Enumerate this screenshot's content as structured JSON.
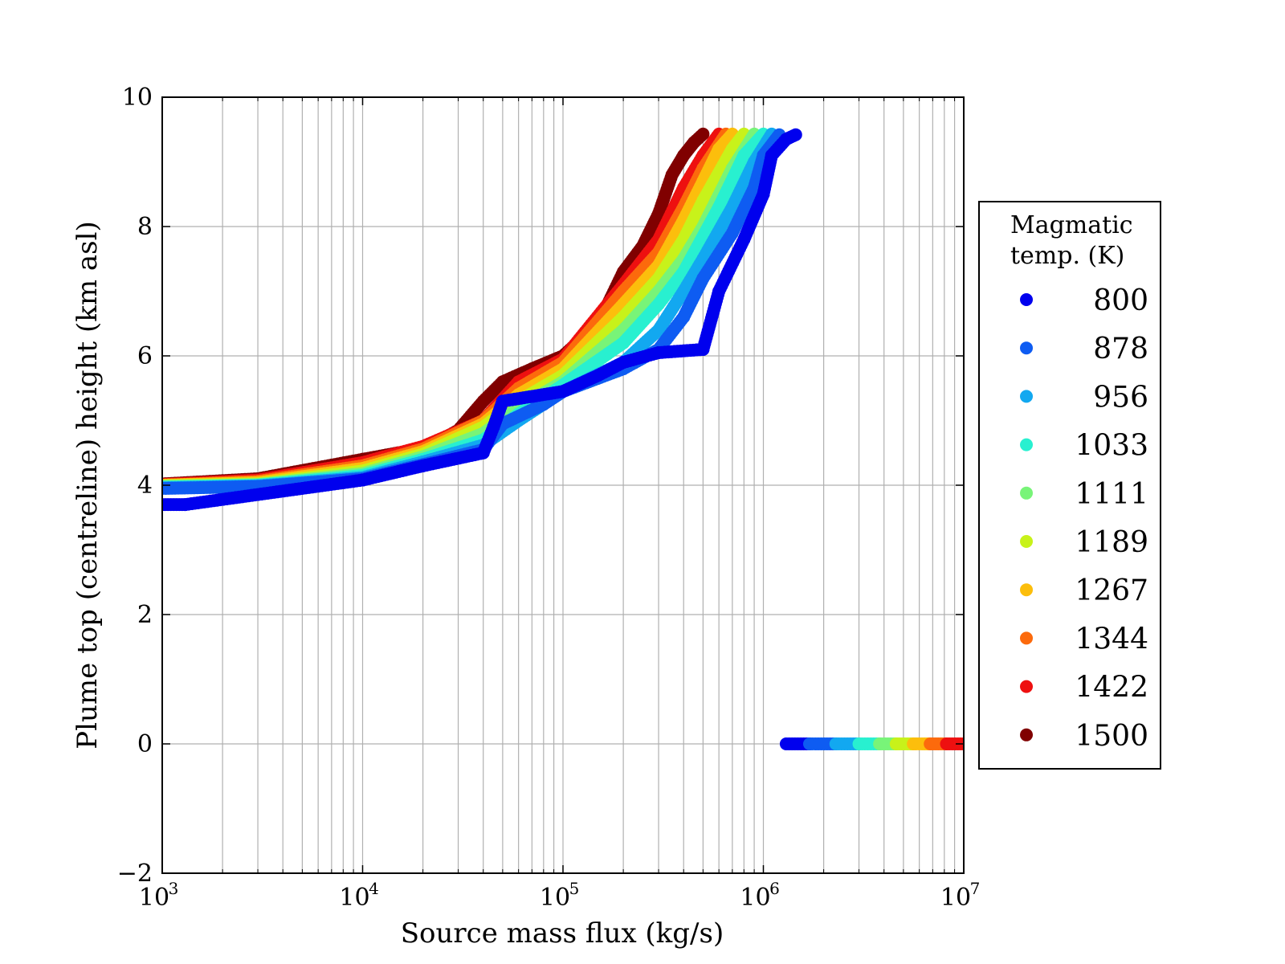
{
  "chart_data": {
    "type": "scatter",
    "title": "",
    "xlabel": "Source mass flux (kg/s)",
    "ylabel": "Plume top (centreline) height (km asl)",
    "x_scale": "log",
    "xlim": [
      1000,
      10000000
    ],
    "ylim": [
      -2,
      10
    ],
    "x_tick_values": [
      1000,
      10000,
      100000,
      1000000,
      10000000
    ],
    "x_tick_labels": [
      {
        "base": "10",
        "exp": "3"
      },
      {
        "base": "10",
        "exp": "4"
      },
      {
        "base": "10",
        "exp": "5"
      },
      {
        "base": "10",
        "exp": "6"
      },
      {
        "base": "10",
        "exp": "7"
      }
    ],
    "y_ticks": [
      -2,
      0,
      2,
      4,
      6,
      8,
      10
    ],
    "y_tick_labels": [
      "−2",
      "0",
      "2",
      "4",
      "6",
      "8",
      "10"
    ],
    "grid": true,
    "legend": {
      "title_lines": [
        "Magmatic",
        "temp. (K)"
      ],
      "placement": "right, outside plot"
    },
    "series": [
      {
        "name": "800",
        "color": "#0000ee",
        "x": [
          1000,
          1300,
          10000,
          20000,
          40000,
          45000,
          50000,
          100000,
          150000,
          200000,
          300000,
          500000,
          600000,
          800000,
          1000000,
          1100000,
          1300000,
          1450000
        ],
        "y": [
          3.7,
          3.7,
          4.08,
          4.3,
          4.5,
          4.9,
          5.3,
          5.45,
          5.7,
          5.9,
          6.05,
          6.1,
          7.0,
          7.8,
          8.5,
          9.1,
          9.35,
          9.42
        ]
      },
      {
        "name": "878",
        "color": "#0e5cf2",
        "x": [
          1000,
          3000,
          10000,
          20000,
          40000,
          50000,
          80000,
          100000,
          200000,
          300000,
          400000,
          500000,
          700000,
          900000,
          1000000,
          1200000
        ],
        "y": [
          3.95,
          3.98,
          4.1,
          4.32,
          4.55,
          4.95,
          5.25,
          5.45,
          5.8,
          6.1,
          6.6,
          7.2,
          7.9,
          8.6,
          9.1,
          9.42
        ]
      },
      {
        "name": "956",
        "color": "#12a8f0",
        "x": [
          1000,
          3000,
          10000,
          20000,
          40000,
          60000,
          100000,
          200000,
          300000,
          400000,
          500000,
          700000,
          900000,
          1100000
        ],
        "y": [
          3.96,
          3.99,
          4.12,
          4.36,
          4.62,
          5.0,
          5.45,
          5.9,
          6.4,
          7.0,
          7.5,
          8.3,
          9.0,
          9.43
        ]
      },
      {
        "name": "1033",
        "color": "#28f0d0",
        "x": [
          1000,
          3000,
          10000,
          20000,
          40000,
          60000,
          100000,
          200000,
          300000,
          400000,
          600000,
          800000,
          1000000
        ],
        "y": [
          3.97,
          4.0,
          4.15,
          4.4,
          4.7,
          5.1,
          5.55,
          6.2,
          6.8,
          7.3,
          8.3,
          9.1,
          9.43
        ]
      },
      {
        "name": "1111",
        "color": "#78f478",
        "x": [
          1000,
          3000,
          10000,
          20000,
          40000,
          60000,
          100000,
          200000,
          300000,
          400000,
          500000,
          700000,
          900000
        ],
        "y": [
          3.98,
          4.01,
          4.18,
          4.44,
          4.8,
          5.2,
          5.6,
          6.4,
          7.0,
          7.5,
          8.0,
          8.9,
          9.43
        ]
      },
      {
        "name": "1189",
        "color": "#c8f21a",
        "x": [
          1000,
          3000,
          10000,
          20000,
          40000,
          60000,
          100000,
          200000,
          300000,
          400000,
          500000,
          700000,
          800000
        ],
        "y": [
          3.99,
          4.02,
          4.22,
          4.48,
          4.9,
          5.3,
          5.7,
          6.6,
          7.2,
          7.8,
          8.4,
          9.2,
          9.43
        ]
      },
      {
        "name": "1267",
        "color": "#fcbe0c",
        "x": [
          1000,
          3000,
          10000,
          20000,
          40000,
          60000,
          100000,
          200000,
          300000,
          400000,
          500000,
          600000,
          700000
        ],
        "y": [
          4.0,
          4.04,
          4.26,
          4.52,
          4.95,
          5.4,
          5.8,
          6.8,
          7.4,
          8.1,
          8.7,
          9.2,
          9.43
        ]
      },
      {
        "name": "1344",
        "color": "#fc6a0c",
        "x": [
          1000,
          3000,
          10000,
          20000,
          40000,
          60000,
          100000,
          200000,
          300000,
          400000,
          500000,
          650000
        ],
        "y": [
          4.0,
          4.06,
          4.3,
          4.56,
          5.0,
          5.5,
          5.9,
          7.0,
          7.6,
          8.3,
          8.9,
          9.43
        ]
      },
      {
        "name": "1422",
        "color": "#ee1010",
        "x": [
          1000,
          3000,
          10000,
          20000,
          40000,
          60000,
          100000,
          200000,
          300000,
          400000,
          500000,
          600000
        ],
        "y": [
          4.01,
          4.08,
          4.35,
          4.6,
          5.0,
          5.6,
          5.95,
          7.1,
          7.8,
          8.6,
          9.1,
          9.43
        ]
      },
      {
        "name": "1500",
        "color": "#800000",
        "x": [
          1000,
          3000,
          10000,
          15000,
          20000,
          30000,
          40000,
          50000,
          70000,
          100000,
          150000,
          200000,
          250000,
          300000,
          350000,
          400000,
          450000,
          500000
        ],
        "y": [
          4.02,
          4.1,
          4.4,
          4.5,
          4.55,
          4.85,
          5.3,
          5.6,
          5.8,
          6.0,
          6.5,
          7.3,
          7.7,
          8.2,
          8.8,
          9.1,
          9.3,
          9.43
        ]
      },
      {
        "name": "",
        "color": "#0000ee",
        "x": [
          1300000,
          1700000
        ],
        "y": [
          0.0,
          0.0
        ]
      },
      {
        "name": "",
        "color": "#0e5cf2",
        "x": [
          1700000,
          2300000
        ],
        "y": [
          0.0,
          0.0
        ]
      },
      {
        "name": "",
        "color": "#12a8f0",
        "x": [
          2300000,
          3000000
        ],
        "y": [
          0.0,
          0.0
        ]
      },
      {
        "name": "",
        "color": "#28f0d0",
        "x": [
          3000000,
          3800000
        ],
        "y": [
          0.0,
          0.0
        ]
      },
      {
        "name": "",
        "color": "#78f478",
        "x": [
          3800000,
          4600000
        ],
        "y": [
          0.0,
          0.0
        ]
      },
      {
        "name": "",
        "color": "#c8f21a",
        "x": [
          4600000,
          5600000
        ],
        "y": [
          0.0,
          0.0
        ]
      },
      {
        "name": "",
        "color": "#fcbe0c",
        "x": [
          5600000,
          6800000
        ],
        "y": [
          0.0,
          0.0
        ]
      },
      {
        "name": "",
        "color": "#fc6a0c",
        "x": [
          6800000,
          8200000
        ],
        "y": [
          0.0,
          0.0
        ]
      },
      {
        "name": "",
        "color": "#ee1010",
        "x": [
          8200000,
          10000000
        ],
        "y": [
          0.0,
          0.0
        ]
      }
    ]
  }
}
